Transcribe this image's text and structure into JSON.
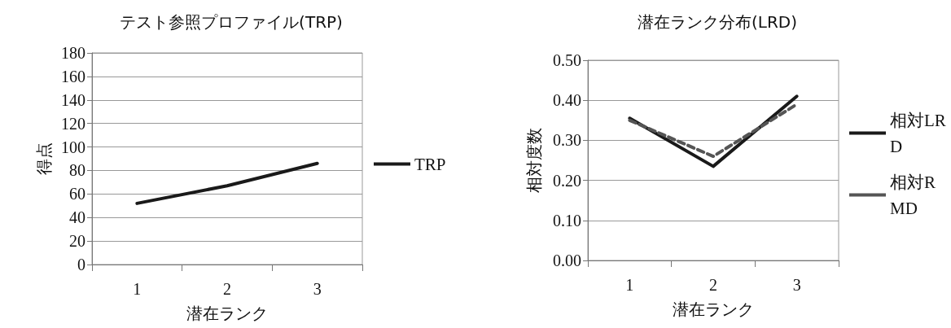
{
  "chart_data": [
    {
      "type": "line",
      "title": "テスト参照プロファイル(TRP)",
      "xlabel": "潜在ランク",
      "ylabel": "得点",
      "categories": [
        "1",
        "2",
        "3"
      ],
      "series": [
        {
          "name": "TRP",
          "color": "#1a1a1a",
          "values": [
            52,
            67,
            86
          ],
          "line_style": "solid"
        }
      ],
      "ylim": [
        0,
        180
      ],
      "yticks": [
        0,
        20,
        40,
        60,
        80,
        100,
        120,
        140,
        160,
        180
      ],
      "grid": "y",
      "legend": "right",
      "marker": "none"
    },
    {
      "type": "line",
      "title": "潜在ランク分布(LRD)",
      "xlabel": "潜在ランク",
      "ylabel": "相対度数",
      "categories": [
        "1",
        "2",
        "3"
      ],
      "series": [
        {
          "name": "相対LRD",
          "color": "#1a1a1a",
          "values": [
            0.355,
            0.235,
            0.41
          ],
          "line_style": "solid"
        },
        {
          "name": "相対RMD",
          "color": "#555555",
          "values": [
            0.35,
            0.26,
            0.39
          ],
          "line_style": "dashed"
        }
      ],
      "ylim": [
        0,
        0.5
      ],
      "yticks": [
        {
          "value": 0,
          "label": "0.00"
        },
        {
          "value": 0.1,
          "label": "0.10"
        },
        {
          "value": 0.2,
          "label": "0.20"
        },
        {
          "value": 0.3,
          "label": "0.30"
        },
        {
          "value": 0.4,
          "label": "0.40"
        },
        {
          "value": 0.5,
          "label": "0.50"
        }
      ],
      "grid": "y",
      "legend": "right",
      "marker": "none"
    }
  ]
}
